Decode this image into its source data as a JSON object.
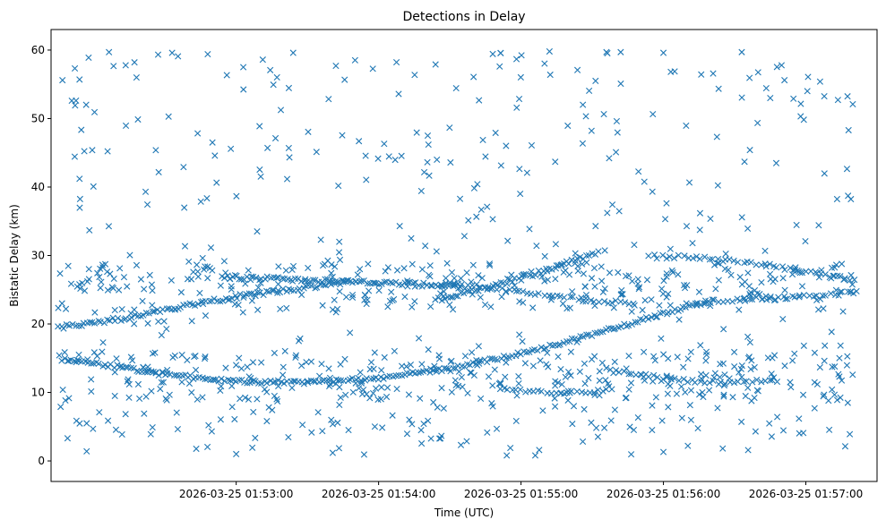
{
  "chart_data": {
    "type": "scatter",
    "title": "Detections in Delay",
    "xlabel": "Time (UTC)",
    "ylabel": "Bistatic Delay (km)",
    "marker": "x",
    "color": "#1f77b4",
    "x_unit": "minutes since 2026-03-25 01:52:00 UTC",
    "xlim": [
      -0.3,
      5.5
    ],
    "ylim": [
      -3,
      63
    ],
    "x_ticks": [
      {
        "value": 1,
        "label": "2026-03-25 01:53:00"
      },
      {
        "value": 2,
        "label": "2026-03-25 01:54:00"
      },
      {
        "value": 3,
        "label": "2026-03-25 01:55:00"
      },
      {
        "value": 4,
        "label": "2026-03-25 01:56:00"
      },
      {
        "value": 5,
        "label": "2026-03-25 01:57:00"
      }
    ],
    "y_ticks": [
      {
        "value": 0,
        "label": "0"
      },
      {
        "value": 10,
        "label": "10"
      },
      {
        "value": 20,
        "label": "20"
      },
      {
        "value": 30,
        "label": "30"
      },
      {
        "value": 40,
        "label": "40"
      },
      {
        "value": 50,
        "label": "50"
      },
      {
        "value": 60,
        "label": "60"
      }
    ],
    "tracks": [
      {
        "name": "track-lower-curve",
        "t_start": -0.22,
        "t_end": 4.35,
        "step": 0.02,
        "jitter": 0.25,
        "knots": [
          [
            -0.22,
            14.8
          ],
          [
            0.15,
            13.8
          ],
          [
            0.5,
            12.6
          ],
          [
            1.0,
            11.6
          ],
          [
            1.5,
            11.5
          ],
          [
            2.0,
            12.1
          ],
          [
            2.5,
            13.5
          ],
          [
            3.0,
            15.7
          ],
          [
            3.5,
            18.4
          ],
          [
            4.0,
            21.5
          ],
          [
            4.35,
            23.5
          ]
        ]
      },
      {
        "name": "track-rising-from-left",
        "t_start": -0.25,
        "t_end": 1.8,
        "step": 0.02,
        "jitter": 0.3,
        "knots": [
          [
            -0.25,
            19.5
          ],
          [
            0.2,
            20.8
          ],
          [
            0.6,
            22.5
          ],
          [
            1.0,
            24.0
          ],
          [
            1.5,
            25.4
          ],
          [
            1.8,
            26.2
          ]
        ]
      },
      {
        "name": "track-upper-steady",
        "t_start": 0.9,
        "t_end": 2.6,
        "step": 0.02,
        "jitter": 0.3,
        "knots": [
          [
            0.9,
            26.8
          ],
          [
            1.6,
            26.4
          ],
          [
            2.2,
            25.9
          ],
          [
            2.6,
            25.3
          ]
        ]
      },
      {
        "name": "track-rising-middle",
        "t_start": 2.4,
        "t_end": 3.55,
        "step": 0.02,
        "jitter": 0.3,
        "knots": [
          [
            2.4,
            23.5
          ],
          [
            2.8,
            25.5
          ],
          [
            3.2,
            28.0
          ],
          [
            3.55,
            30.5
          ]
        ]
      },
      {
        "name": "track-falling-middle",
        "t_start": 2.5,
        "t_end": 3.8,
        "step": 0.03,
        "jitter": 0.3,
        "knots": [
          [
            2.5,
            26.0
          ],
          [
            3.0,
            24.8
          ],
          [
            3.4,
            23.6
          ],
          [
            3.8,
            23.0
          ]
        ]
      },
      {
        "name": "track-right-upper",
        "t_start": 3.9,
        "t_end": 5.35,
        "step": 0.03,
        "jitter": 0.3,
        "knots": [
          [
            3.9,
            29.9
          ],
          [
            4.3,
            29.6
          ],
          [
            4.7,
            28.8
          ],
          [
            5.0,
            27.6
          ],
          [
            5.35,
            26.5
          ]
        ]
      },
      {
        "name": "track-right-rising",
        "t_start": 4.3,
        "t_end": 5.35,
        "step": 0.03,
        "jitter": 0.3,
        "knots": [
          [
            4.3,
            23.3
          ],
          [
            4.8,
            23.8
          ],
          [
            5.35,
            24.6
          ]
        ]
      },
      {
        "name": "track-right-low",
        "t_start": 3.6,
        "t_end": 4.8,
        "step": 0.03,
        "jitter": 0.25,
        "knots": [
          [
            3.6,
            13.5
          ],
          [
            4.0,
            12.0
          ],
          [
            4.4,
            11.4
          ],
          [
            4.8,
            11.8
          ]
        ]
      },
      {
        "name": "track-low-middle",
        "t_start": 2.85,
        "t_end": 3.65,
        "step": 0.03,
        "jitter": 0.25,
        "knots": [
          [
            2.85,
            10.5
          ],
          [
            3.25,
            10.0
          ],
          [
            3.65,
            10.3
          ]
        ]
      }
    ],
    "clutter": {
      "count": 420,
      "seed": 20260325,
      "t_range": [
        -0.25,
        5.35
      ],
      "y_range": [
        0.5,
        60
      ],
      "bands": [
        {
          "y_range": [
            22,
            29
          ],
          "count": 260
        },
        {
          "y_range": [
            9,
            16
          ],
          "count": 250
        },
        {
          "y_range": [
            4,
            9
          ],
          "count": 50
        }
      ]
    },
    "highlight_points": [
      [
        -0.22,
        55.6
      ],
      [
        -0.1,
        41.2
      ],
      [
        -0.05,
        1.4
      ],
      [
        0.3,
        56.0
      ],
      [
        0.55,
        59.6
      ],
      [
        0.8,
        59.4
      ],
      [
        1.05,
        57.5
      ],
      [
        1.4,
        59.6
      ],
      [
        1.7,
        57.7
      ],
      [
        2.4,
        57.9
      ],
      [
        2.85,
        57.6
      ],
      [
        3.2,
        59.8
      ],
      [
        3.6,
        59.7
      ],
      [
        3.7,
        59.7
      ],
      [
        4.0,
        59.6
      ],
      [
        4.55,
        59.7
      ],
      [
        4.85,
        55.6
      ],
      [
        5.1,
        55.4
      ],
      [
        3.1,
        0.8
      ],
      [
        1.0,
        1.0
      ],
      [
        4.0,
        1.3
      ],
      [
        2.9,
        0.8
      ],
      [
        0.4,
        3.9
      ],
      [
        5.3,
        48.3
      ]
    ]
  }
}
